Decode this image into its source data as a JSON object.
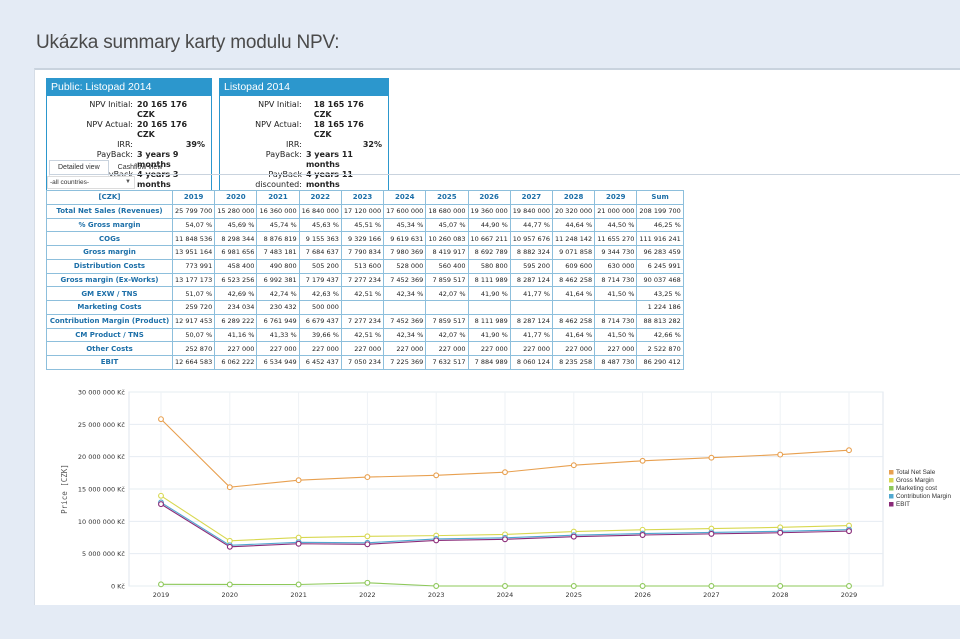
{
  "heading": "Ukázka summary karty modulu NPV:",
  "cards": [
    {
      "title": "Public: Listopad 2014",
      "rows": [
        {
          "key": "NPV Initial:",
          "value": "20 165 176 CZK"
        },
        {
          "key": "NPV Actual:",
          "value": "20 165 176 CZK"
        },
        {
          "key": "IRR:",
          "value": "39%"
        },
        {
          "key": "PayBack:",
          "value": "3 years 9 months"
        },
        {
          "key": "PayBack discounted:",
          "value": "4 years 3 months"
        }
      ]
    },
    {
      "title": "Listopad 2014",
      "rows": [
        {
          "key": "NPV Initial:",
          "value": "18 165 176 CZK"
        },
        {
          "key": "NPV Actual:",
          "value": "18 165 176 CZK"
        },
        {
          "key": "IRR:",
          "value": "32%"
        },
        {
          "key": "PayBack:",
          "value": "3 years 11 months"
        },
        {
          "key": "PayBack discounted:",
          "value": "4 years 11 months"
        }
      ]
    }
  ],
  "tabs": [
    "Detailed view",
    "Cashflow view"
  ],
  "country_select": "-all countries-",
  "table": {
    "corner": "[CZK]",
    "columns": [
      "2019",
      "2020",
      "2021",
      "2022",
      "2023",
      "2024",
      "2025",
      "2026",
      "2027",
      "2028",
      "2029",
      "Sum"
    ],
    "rows": [
      {
        "label": "Total Net Sales (Revenues)",
        "values": [
          "25 799 700",
          "15 280 000",
          "16 360 000",
          "16 840 000",
          "17 120 000",
          "17 600 000",
          "18 680 000",
          "19 360 000",
          "19 840 000",
          "20 320 000",
          "21 000 000",
          "208 199 700"
        ]
      },
      {
        "label": "% Gross margin",
        "values": [
          "54,07 %",
          "45,69 %",
          "45,74 %",
          "45,63 %",
          "45,51 %",
          "45,34 %",
          "45,07 %",
          "44,90 %",
          "44,77 %",
          "44,64 %",
          "44,50 %",
          "46,25 %"
        ]
      },
      {
        "label": "COGs",
        "values": [
          "11 848 536",
          "8 298 344",
          "8 876 819",
          "9 155 363",
          "9 329 166",
          "9 619 631",
          "10 260 083",
          "10 667 211",
          "10 957 676",
          "11 248 142",
          "11 655 270",
          "111 916 241"
        ]
      },
      {
        "label": "Gross margin",
        "values": [
          "13 951 164",
          "6 981 656",
          "7 483 181",
          "7 684 637",
          "7 790 834",
          "7 980 369",
          "8 419 917",
          "8 692 789",
          "8 882 324",
          "9 071 858",
          "9 344 730",
          "96 283 459"
        ]
      },
      {
        "label": "Distribution Costs",
        "values": [
          "773 991",
          "458 400",
          "490 800",
          "505 200",
          "513 600",
          "528 000",
          "560 400",
          "580 800",
          "595 200",
          "609 600",
          "630 000",
          "6 245 991"
        ]
      },
      {
        "label": "Gross margin (Ex-Works)",
        "values": [
          "13 177 173",
          "6 523 256",
          "6 992 381",
          "7 179 437",
          "7 277 234",
          "7 452 369",
          "7 859 517",
          "8 111 989",
          "8 287 124",
          "8 462 258",
          "8 714 730",
          "90 037 468"
        ]
      },
      {
        "label": "GM EXW / TNS",
        "values": [
          "51,07 %",
          "42,69 %",
          "42,74 %",
          "42,63 %",
          "42,51 %",
          "42,34 %",
          "42,07 %",
          "41,90 %",
          "41,77 %",
          "41,64 %",
          "41,50 %",
          "43,25 %"
        ]
      },
      {
        "label": "Marketing Costs",
        "values": [
          "259 720",
          "234 034",
          "230 432",
          "500 000",
          "",
          "",
          "",
          "",
          "",
          "",
          "",
          "1 224 186"
        ]
      },
      {
        "label": "Contribution Margin (Product)",
        "values": [
          "12 917 453",
          "6 289 222",
          "6 761 949",
          "6 679 437",
          "7 277 234",
          "7 452 369",
          "7 859 517",
          "8 111 989",
          "8 287 124",
          "8 462 258",
          "8 714 730",
          "88 813 282"
        ]
      },
      {
        "label": "CM Product / TNS",
        "values": [
          "50,07 %",
          "41,16 %",
          "41,33 %",
          "39,66 %",
          "42,51 %",
          "42,34 %",
          "42,07 %",
          "41,90 %",
          "41,77 %",
          "41,64 %",
          "41,50 %",
          "42,66 %"
        ]
      },
      {
        "label": "Other Costs",
        "values": [
          "252 870",
          "227 000",
          "227 000",
          "227 000",
          "227 000",
          "227 000",
          "227 000",
          "227 000",
          "227 000",
          "227 000",
          "227 000",
          "2 522 870"
        ]
      },
      {
        "label": "EBIT",
        "values": [
          "12 664 583",
          "6 062 222",
          "6 534 949",
          "6 452 437",
          "7 050 234",
          "7 225 369",
          "7 632 517",
          "7 884 989",
          "8 060 124",
          "8 235 258",
          "8 487 730",
          "86 290 412"
        ]
      }
    ]
  },
  "chart_data": {
    "type": "line",
    "ylabel": "Price [CZK]",
    "xlabel": "",
    "ylim": [
      0,
      30000000
    ],
    "yticks": [
      {
        "value": 0,
        "label": "0 Kč"
      },
      {
        "value": 5000000,
        "label": "5 000 000 Kč"
      },
      {
        "value": 10000000,
        "label": "10 000 000 Kč"
      },
      {
        "value": 15000000,
        "label": "15 000 000 Kč"
      },
      {
        "value": 20000000,
        "label": "20 000 000 Kč"
      },
      {
        "value": 25000000,
        "label": "25 000 000 Kč"
      },
      {
        "value": 30000000,
        "label": "30 000 000 Kč"
      }
    ],
    "x": [
      "2019",
      "2020",
      "2021",
      "2022",
      "2023",
      "2024",
      "2025",
      "2026",
      "2027",
      "2028",
      "2029"
    ],
    "grid": true,
    "legend_position": "right",
    "series": [
      {
        "name": "Total Net Sale",
        "color": "#e8a050",
        "values": [
          25799700,
          15280000,
          16360000,
          16840000,
          17120000,
          17600000,
          18680000,
          19360000,
          19840000,
          20320000,
          21000000
        ]
      },
      {
        "name": "Gross Margin",
        "color": "#d8d850",
        "values": [
          13951164,
          6981656,
          7483181,
          7684637,
          7790834,
          7980369,
          8419917,
          8692789,
          8882324,
          9071858,
          9344730
        ]
      },
      {
        "name": "Marketing cost",
        "color": "#8ec85a",
        "values": [
          259720,
          234034,
          230432,
          500000,
          0,
          0,
          0,
          0,
          0,
          0,
          0
        ]
      },
      {
        "name": "Contribution Margin",
        "color": "#50a8d0",
        "values": [
          12917453,
          6289222,
          6761949,
          6679437,
          7277234,
          7452369,
          7859517,
          8111989,
          8287124,
          8462258,
          8714730
        ]
      },
      {
        "name": "EBIT",
        "color": "#8a2a78",
        "values": [
          12664583,
          6062222,
          6534949,
          6452437,
          7050234,
          7225369,
          7632517,
          7884989,
          8060124,
          8235258,
          8487730
        ]
      }
    ]
  }
}
